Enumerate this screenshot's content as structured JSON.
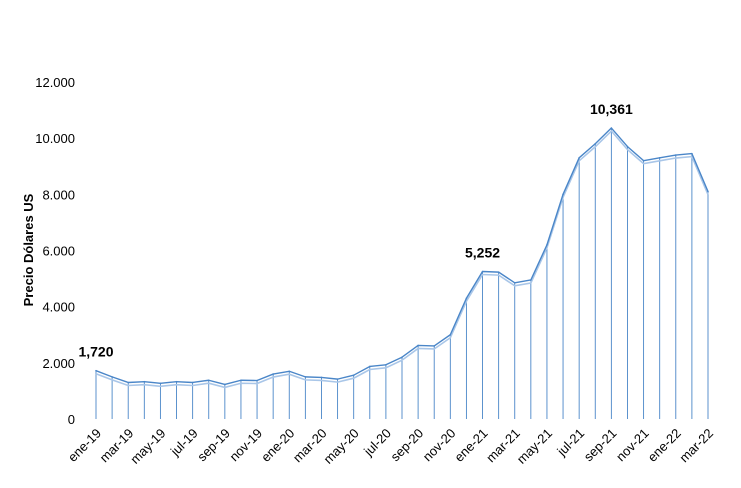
{
  "chart_data": {
    "type": "area",
    "title": "",
    "xlabel": "",
    "ylabel": "Precio Dólares  US",
    "ylim": [
      0,
      12000
    ],
    "yticks": [
      0,
      2000,
      4000,
      6000,
      8000,
      10000,
      12000
    ],
    "ytick_labels": [
      "0",
      "2.000",
      "4.000",
      "6.000",
      "8.000",
      "10.000",
      "12.000"
    ],
    "grid": false,
    "legend": "none",
    "series_color": "#4a86c8",
    "series_shadow_color": "#a9c6e8",
    "categories": [
      "ene-19",
      "feb-19",
      "mar-19",
      "abr-19",
      "may-19",
      "jun-19",
      "jul-19",
      "ago-19",
      "sep-19",
      "oct-19",
      "nov-19",
      "dic-19",
      "ene-20",
      "feb-20",
      "mar-20",
      "abr-20",
      "may-20",
      "jun-20",
      "jul-20",
      "ago-20",
      "sep-20",
      "oct-20",
      "nov-20",
      "dic-20",
      "ene-21",
      "feb-21",
      "mar-21",
      "abr-21",
      "may-21",
      "jun-21",
      "jul-21",
      "ago-21",
      "sep-21",
      "oct-21",
      "nov-21",
      "dic-21",
      "ene-22",
      "feb-22",
      "mar-22"
    ],
    "xtick_labels": [
      "ene-19",
      "mar-19",
      "may-19",
      "jul-19",
      "sep-19",
      "nov-19",
      "ene-20",
      "mar-20",
      "may-20",
      "jul-20",
      "sep-20",
      "nov-20",
      "ene-21",
      "mar-21",
      "may-21",
      "jul-21",
      "sep-21",
      "nov-21",
      "ene-22",
      "mar-22"
    ],
    "values": [
      1720,
      1500,
      1300,
      1330,
      1270,
      1330,
      1300,
      1380,
      1230,
      1380,
      1370,
      1600,
      1700,
      1500,
      1480,
      1420,
      1560,
      1870,
      1930,
      2200,
      2620,
      2600,
      3000,
      4300,
      5252,
      5230,
      4850,
      4950,
      6200,
      8000,
      9300,
      9800,
      10361,
      9700,
      9200,
      9300,
      9400,
      9450,
      8100
    ],
    "annotations": [
      {
        "index": 0,
        "text": "1,720"
      },
      {
        "index": 24,
        "text": "5,252"
      },
      {
        "index": 32,
        "text": "10,361"
      }
    ]
  }
}
